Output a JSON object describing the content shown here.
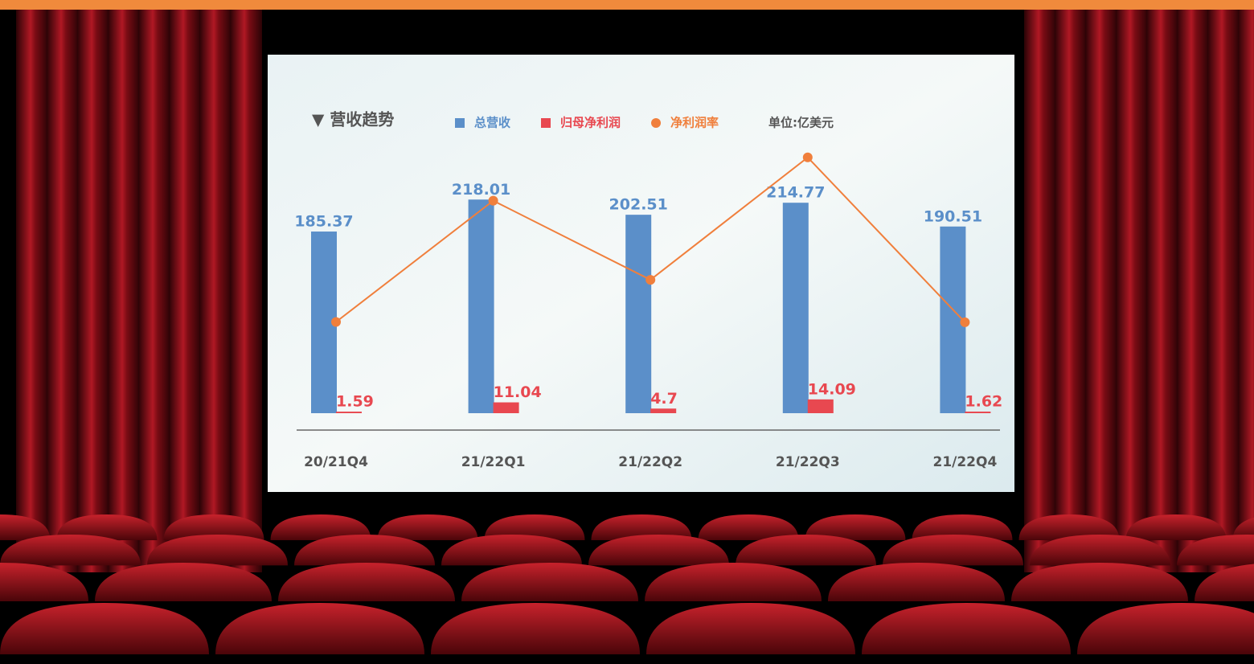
{
  "chart_data": {
    "type": "bar",
    "title": "▼ 营收趋势",
    "unit": "单位:亿美元",
    "categories": [
      "20/21Q4",
      "21/22Q1",
      "21/22Q2",
      "21/22Q3",
      "21/22Q4"
    ],
    "series": [
      {
        "name": "总营收",
        "color": "#5b8fc9",
        "type": "bar",
        "values": [
          185.37,
          218.01,
          202.51,
          214.77,
          190.51
        ]
      },
      {
        "name": "归母净利润",
        "color": "#e84850",
        "type": "bar",
        "values": [
          1.59,
          11.04,
          4.7,
          14.09,
          1.62
        ]
      },
      {
        "name": "净利润率",
        "color": "#f07f3c",
        "type": "line",
        "axis": "y2",
        "values": [
          0.86,
          5.06,
          2.32,
          6.56,
          0.85
        ]
      }
    ],
    "ylim": [
      0,
      274
    ],
    "y2lim": [
      -2.3,
      7
    ]
  }
}
